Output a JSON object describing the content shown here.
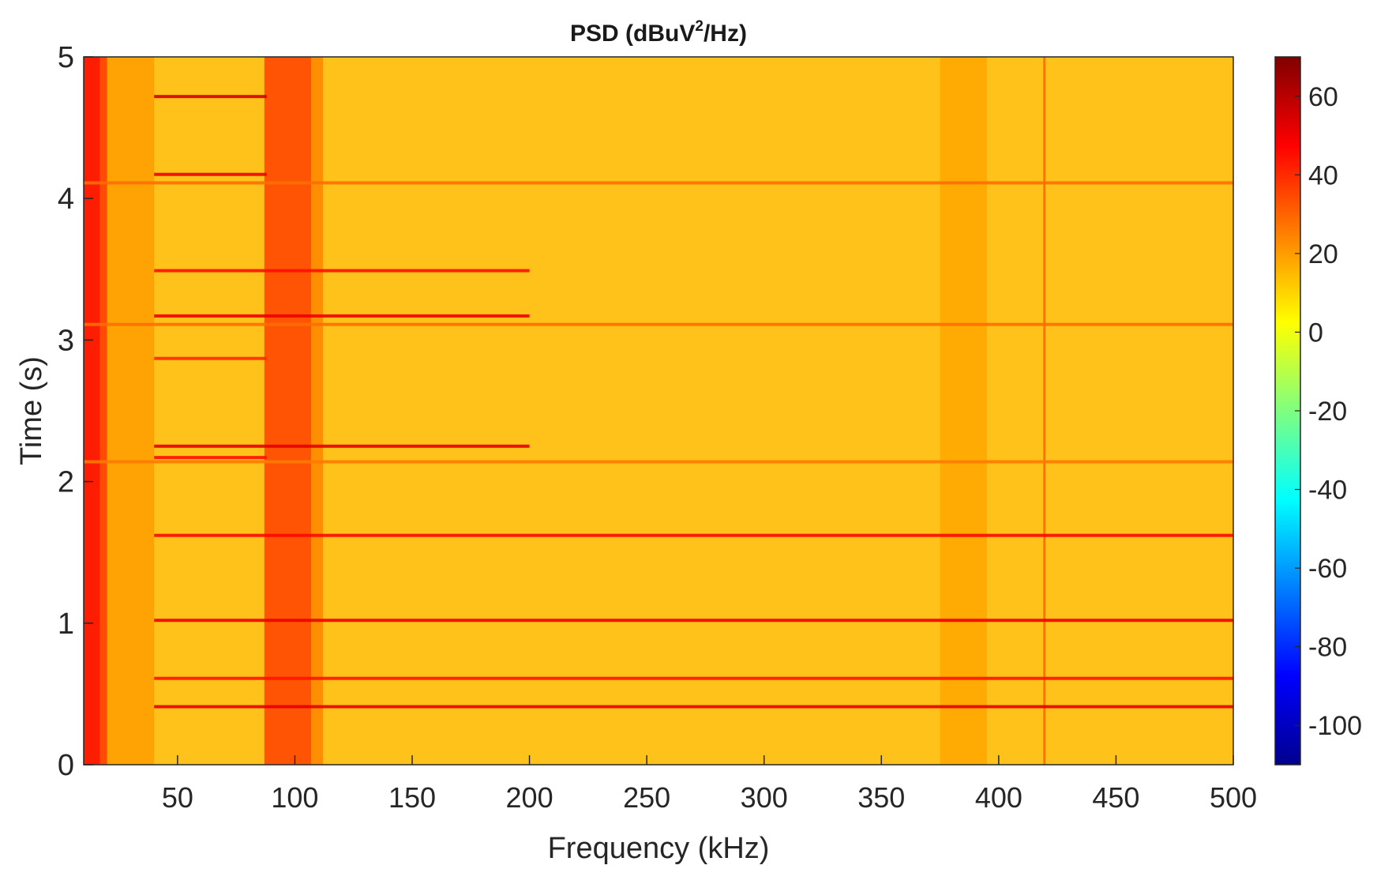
{
  "chart_data": {
    "type": "heatmap",
    "title_prefix": "PSD (dBuV",
    "title_sup": "2",
    "title_suffix": "/Hz)",
    "xlabel": "Frequency (kHz)",
    "ylabel": "Time (s)",
    "xlim": [
      10,
      500
    ],
    "ylim": [
      0,
      5
    ],
    "xticks": [
      50,
      100,
      150,
      200,
      250,
      300,
      350,
      400,
      450,
      500
    ],
    "yticks": [
      0,
      1,
      2,
      3,
      4,
      5
    ],
    "colorbar": {
      "colormap": "jet",
      "clim": [
        -110,
        70
      ],
      "ticks": [
        60,
        40,
        20,
        0,
        -20,
        -40,
        -60,
        -80,
        -100
      ]
    },
    "background_level_db": 12,
    "vertical_features": [
      {
        "f_start": 10,
        "f_end": 17,
        "level_db": 48
      },
      {
        "f_start": 17,
        "f_end": 20,
        "level_db": 38
      },
      {
        "f_start": 20,
        "f_end": 40,
        "level_db": 20
      },
      {
        "f_start": 87,
        "f_end": 107,
        "level_db": 36
      },
      {
        "f_start": 107,
        "f_end": 112,
        "level_db": 24
      },
      {
        "f_start": 375,
        "f_end": 395,
        "level_db": 18
      },
      {
        "f_start": 419,
        "f_end": 420,
        "level_db": 30
      }
    ],
    "horizontal_features": [
      {
        "t": 4.72,
        "f_start": 40,
        "f_end": 88,
        "level_db": 55
      },
      {
        "t": 4.17,
        "f_start": 40,
        "f_end": 88,
        "level_db": 50
      },
      {
        "t": 4.11,
        "f_start": 10,
        "f_end": 500,
        "level_db": 28
      },
      {
        "t": 3.49,
        "f_start": 40,
        "f_end": 200,
        "level_db": 45
      },
      {
        "t": 3.17,
        "f_start": 40,
        "f_end": 200,
        "level_db": 50
      },
      {
        "t": 3.11,
        "f_start": 10,
        "f_end": 500,
        "level_db": 28
      },
      {
        "t": 2.87,
        "f_start": 40,
        "f_end": 88,
        "level_db": 40
      },
      {
        "t": 2.25,
        "f_start": 40,
        "f_end": 200,
        "level_db": 52
      },
      {
        "t": 2.17,
        "f_start": 40,
        "f_end": 88,
        "level_db": 45
      },
      {
        "t": 2.14,
        "f_start": 10,
        "f_end": 500,
        "level_db": 26
      },
      {
        "t": 1.62,
        "f_start": 40,
        "f_end": 500,
        "level_db": 46
      },
      {
        "t": 1.02,
        "f_start": 40,
        "f_end": 500,
        "level_db": 50
      },
      {
        "t": 0.61,
        "f_start": 40,
        "f_end": 500,
        "level_db": 44
      },
      {
        "t": 0.41,
        "f_start": 40,
        "f_end": 500,
        "level_db": 52
      }
    ]
  }
}
